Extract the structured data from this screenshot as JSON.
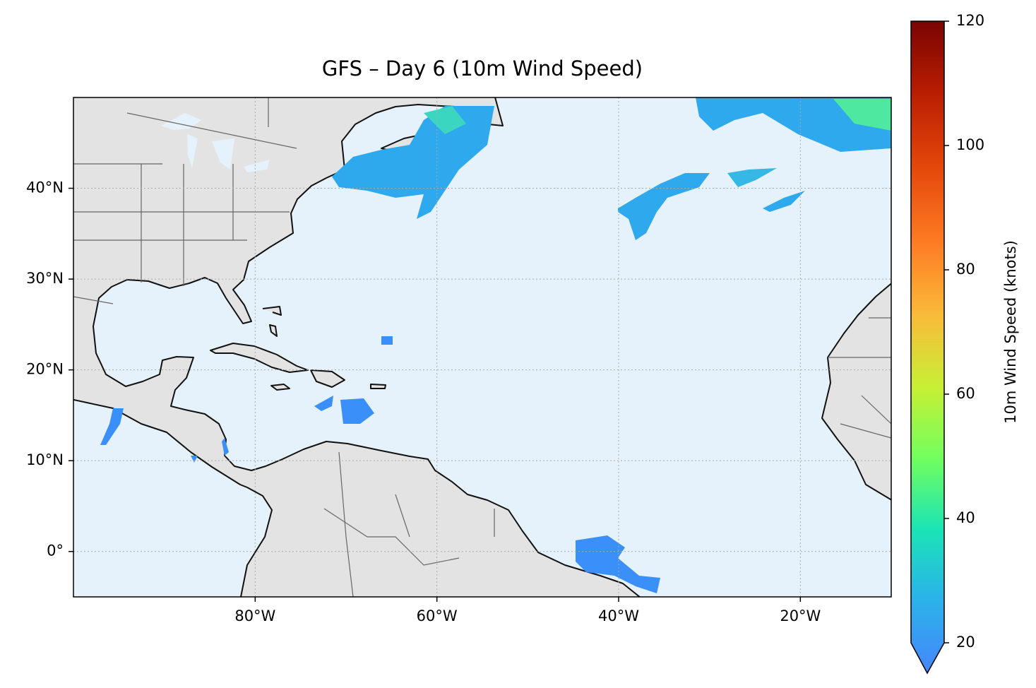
{
  "chart_data": {
    "type": "map",
    "title": "GFS – Day 6 (10m Wind Speed)",
    "xlim": [
      -100,
      -10
    ],
    "ylim": [
      -5,
      50
    ],
    "xticks": [
      {
        "value": -80,
        "label": "80°W"
      },
      {
        "value": -60,
        "label": "60°W"
      },
      {
        "value": -40,
        "label": "40°W"
      },
      {
        "value": -20,
        "label": "20°W"
      }
    ],
    "yticks": [
      {
        "value": 0,
        "label": "0°"
      },
      {
        "value": 10,
        "label": "10°N"
      },
      {
        "value": 20,
        "label": "20°N"
      },
      {
        "value": 30,
        "label": "30°N"
      },
      {
        "value": 40,
        "label": "40°N"
      }
    ],
    "grid": true,
    "colorbar": {
      "label": "10m Wind Speed (knots)",
      "lim": [
        20,
        120
      ],
      "ticks": [
        20,
        40,
        60,
        80,
        100,
        120
      ]
    }
  }
}
